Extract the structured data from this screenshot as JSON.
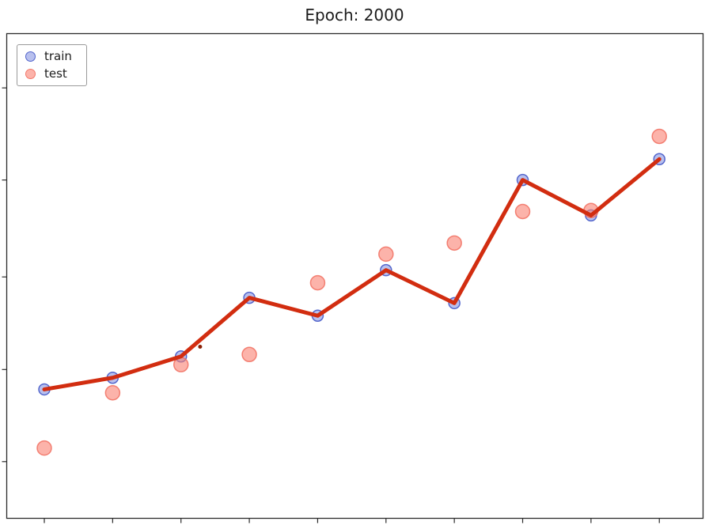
{
  "title": "Epoch: 2000",
  "legend": {
    "items": [
      {
        "label": "train",
        "series": "train"
      },
      {
        "label": "test",
        "series": "test"
      }
    ]
  },
  "colors": {
    "train_fill": "rgba(85, 105, 215, 0.42)",
    "train_edge": "rgba(70, 90, 200, 0.9)",
    "test_fill": "rgba(250, 128, 114, 0.6)",
    "test_edge": "rgba(240, 105, 90, 0.8)",
    "line": "#d22d10",
    "stray_dot": "#8b2005",
    "frame": "#2b2b2b"
  },
  "chart_data": {
    "type": "scatter",
    "title": "Epoch: 2000",
    "x": [
      1,
      2,
      3,
      4,
      5,
      6,
      7,
      8,
      9,
      10
    ],
    "series": [
      {
        "name": "train",
        "marker_radius": 7,
        "values": [
          0.266,
          0.29,
          0.334,
          0.455,
          0.418,
          0.512,
          0.444,
          0.698,
          0.625,
          0.741
        ]
      },
      {
        "name": "test",
        "marker_radius": 9,
        "values": [
          0.145,
          0.259,
          0.317,
          0.338,
          0.486,
          0.545,
          0.568,
          0.633,
          0.635,
          0.788
        ]
      }
    ],
    "line": {
      "series": "train",
      "width": 5
    },
    "extra_points": [
      {
        "x": 3.28,
        "y": 0.354,
        "radius": 2.5
      }
    ],
    "xlabel": "",
    "ylabel": "",
    "xlim": [
      0.45,
      10.64
    ],
    "ylim": [
      0,
      1
    ],
    "x_ticks": [
      1,
      2,
      3,
      4,
      5,
      6,
      7,
      8,
      9,
      10
    ],
    "y_ticks": [
      0.117,
      0.307,
      0.498,
      0.698,
      0.888
    ],
    "tick_labels_visible": false,
    "grid": false,
    "legend_position": "upper left"
  }
}
